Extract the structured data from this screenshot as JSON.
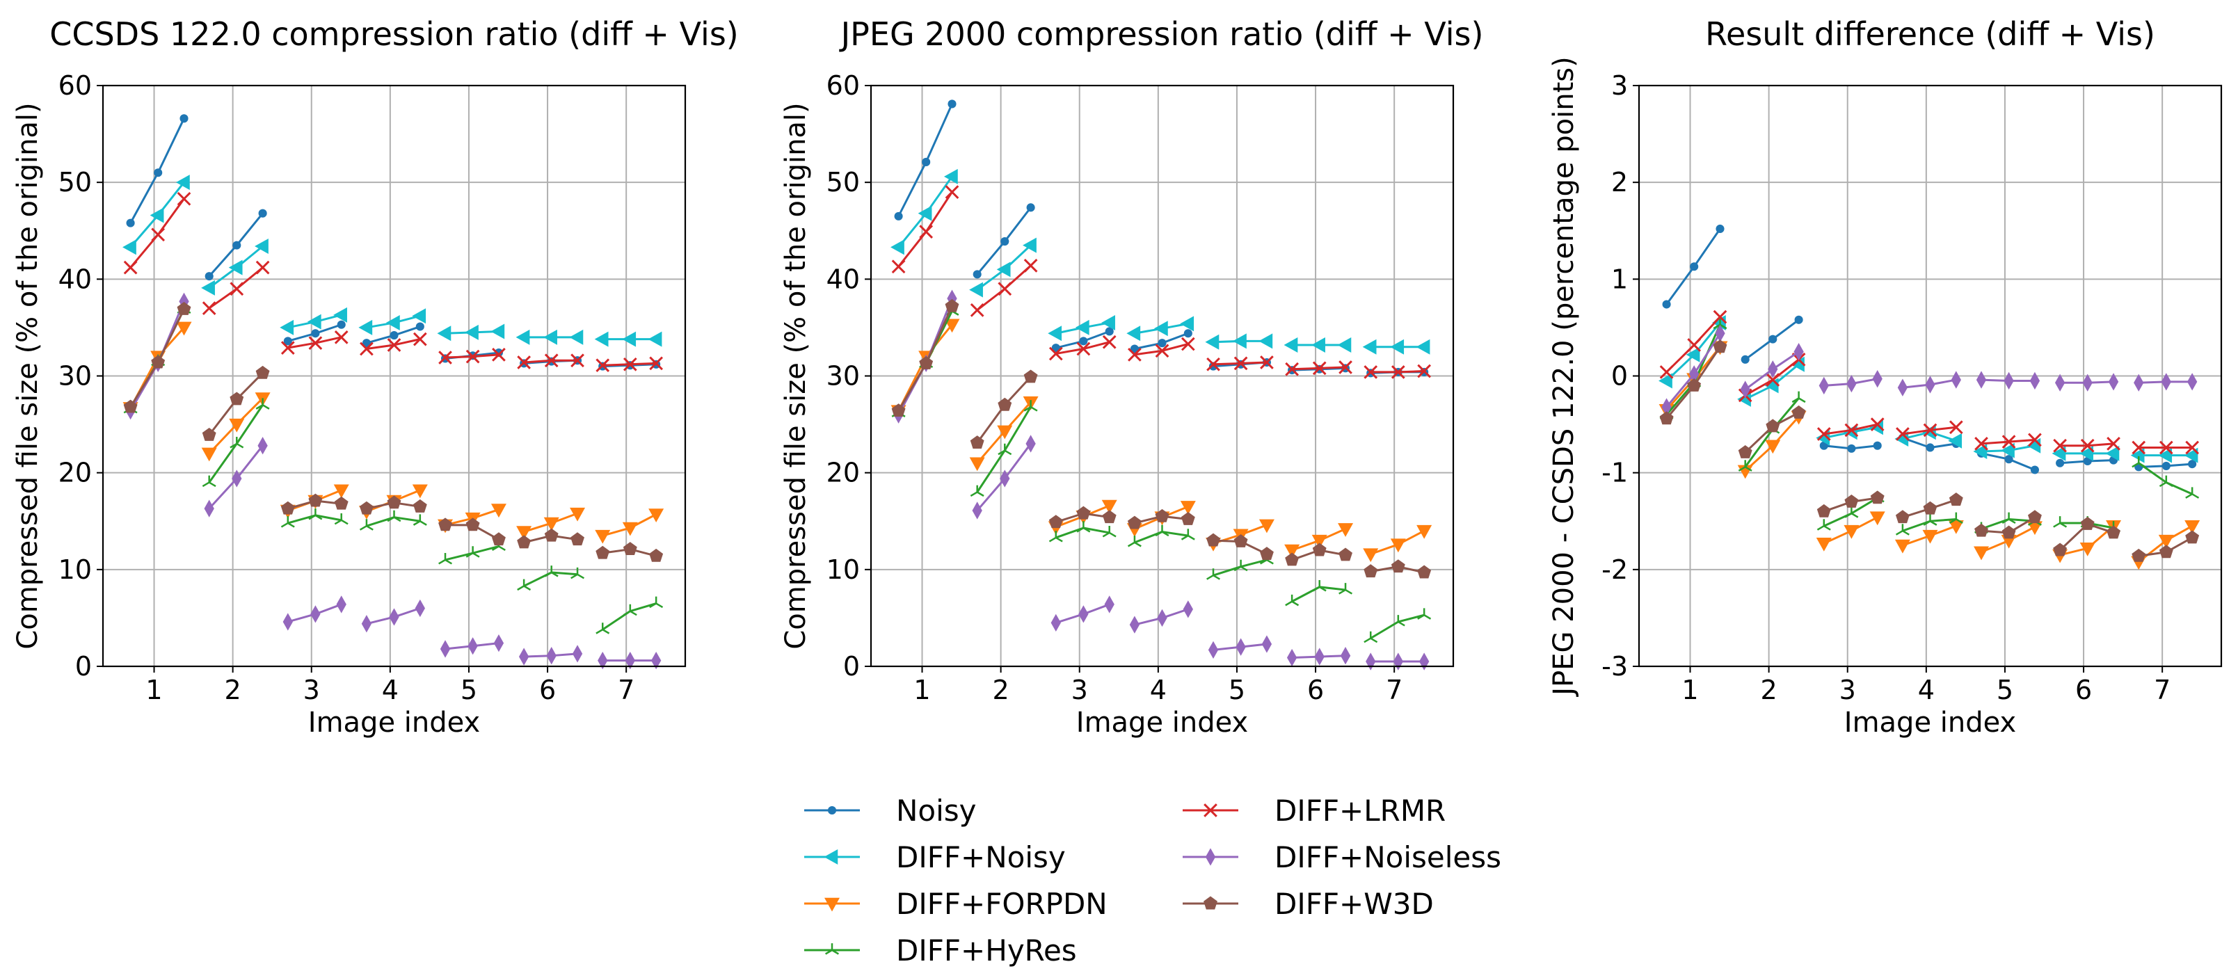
{
  "chart_data": [
    {
      "type": "line",
      "title": "CCSDS 122.0 compression ratio (diff + Vis)",
      "xlabel": "Image index",
      "ylabel": "Compressed file size (% of the original)",
      "xlim": [
        0.35,
        7.75
      ],
      "ylim": [
        0,
        60
      ],
      "xticks": [
        1,
        2,
        3,
        4,
        5,
        6,
        7
      ],
      "yticks": [
        0,
        10,
        20,
        30,
        40,
        50,
        60
      ],
      "grid": true,
      "series": [
        {
          "name": "Noisy",
          "groups": [
            [
              45.8,
              51.0,
              56.6
            ],
            [
              40.3,
              43.5,
              46.8
            ],
            [
              33.6,
              34.4,
              35.3
            ],
            [
              33.4,
              34.2,
              35.1
            ],
            [
              31.8,
              32.1,
              32.4
            ],
            [
              31.3,
              31.5,
              31.6
            ],
            [
              31.0,
              31.1,
              31.2
            ]
          ]
        },
        {
          "name": "DIFF+Noisy",
          "groups": [
            [
              43.3,
              46.6,
              50.0
            ],
            [
              39.1,
              41.2,
              43.4
            ],
            [
              35.0,
              35.6,
              36.3
            ],
            [
              35.0,
              35.5,
              36.2
            ],
            [
              34.4,
              34.5,
              34.6
            ],
            [
              34.0,
              34.0,
              34.0
            ],
            [
              33.8,
              33.8,
              33.8
            ]
          ]
        },
        {
          "name": "DIFF+FORPDN",
          "groups": [
            [
              26.7,
              32.0,
              35.0
            ],
            [
              22.0,
              25.0,
              27.7
            ],
            [
              16.1,
              17.1,
              18.2
            ],
            [
              16.0,
              17.1,
              18.2
            ],
            [
              14.6,
              15.3,
              16.2
            ],
            [
              13.9,
              14.8,
              15.8
            ],
            [
              13.5,
              14.3,
              15.7
            ]
          ]
        },
        {
          "name": "DIFF+HyRes",
          "groups": [
            [
              26.6,
              31.5,
              36.9
            ],
            [
              19.0,
              23.0,
              27.0
            ],
            [
              14.8,
              15.6,
              15.1
            ],
            [
              14.5,
              15.4,
              15.0
            ],
            [
              11.0,
              11.7,
              12.4
            ],
            [
              8.3,
              9.7,
              9.5
            ],
            [
              3.8,
              5.7,
              6.5
            ]
          ]
        },
        {
          "name": "DIFF+LRMR",
          "groups": [
            [
              41.2,
              44.6,
              48.3
            ],
            [
              37.0,
              39.0,
              41.2
            ],
            [
              32.9,
              33.4,
              34.0
            ],
            [
              32.8,
              33.2,
              33.8
            ],
            [
              31.9,
              32.0,
              32.2
            ],
            [
              31.4,
              31.6,
              31.6
            ],
            [
              31.1,
              31.2,
              31.3
            ]
          ]
        },
        {
          "name": "DIFF+Noiseless",
          "groups": [
            [
              26.4,
              31.3,
              37.7
            ],
            [
              16.3,
              19.4,
              22.8
            ],
            [
              4.6,
              5.4,
              6.4
            ],
            [
              4.4,
              5.1,
              6.0
            ],
            [
              1.8,
              2.1,
              2.4
            ],
            [
              1.0,
              1.1,
              1.3
            ],
            [
              0.6,
              0.6,
              0.6
            ]
          ]
        },
        {
          "name": "DIFF+W3D",
          "groups": [
            [
              26.8,
              31.4,
              36.9
            ],
            [
              23.9,
              27.6,
              30.3
            ],
            [
              16.3,
              17.1,
              16.8
            ],
            [
              16.3,
              16.9,
              16.5
            ],
            [
              14.6,
              14.6,
              13.1
            ],
            [
              12.8,
              13.5,
              13.1
            ],
            [
              11.7,
              12.1,
              11.4
            ]
          ]
        }
      ]
    },
    {
      "type": "line",
      "title": "JPEG 2000 compression ratio (diff + Vis)",
      "xlabel": "Image index",
      "ylabel": "Compressed file size (% of the original)",
      "xlim": [
        0.35,
        7.75
      ],
      "ylim": [
        0,
        60
      ],
      "xticks": [
        1,
        2,
        3,
        4,
        5,
        6,
        7
      ],
      "yticks": [
        0,
        10,
        20,
        30,
        40,
        50,
        60
      ],
      "grid": true,
      "series": [
        {
          "name": "Noisy",
          "groups": [
            [
              46.5,
              52.1,
              58.1
            ],
            [
              40.5,
              43.9,
              47.4
            ],
            [
              32.9,
              33.6,
              34.6
            ],
            [
              32.8,
              33.4,
              34.4
            ],
            [
              31.0,
              31.2,
              31.4
            ],
            [
              30.6,
              30.7,
              30.8
            ],
            [
              30.3,
              30.4,
              30.4
            ]
          ]
        },
        {
          "name": "DIFF+Noisy",
          "groups": [
            [
              43.3,
              46.8,
              50.6
            ],
            [
              38.9,
              41.0,
              43.5
            ],
            [
              34.4,
              35.0,
              35.5
            ],
            [
              34.4,
              34.9,
              35.4
            ],
            [
              33.5,
              33.6,
              33.6
            ],
            [
              33.2,
              33.2,
              33.2
            ],
            [
              33.0,
              33.0,
              33.0
            ]
          ]
        },
        {
          "name": "DIFF+FORPDN",
          "groups": [
            [
              26.4,
              32.0,
              35.3
            ],
            [
              21.0,
              24.3,
              27.3
            ],
            [
              14.4,
              15.5,
              16.6
            ],
            [
              14.2,
              15.4,
              16.5
            ],
            [
              12.7,
              13.6,
              14.6
            ],
            [
              12.0,
              13.0,
              14.2
            ],
            [
              11.6,
              12.6,
              14.0
            ]
          ]
        },
        {
          "name": "DIFF+HyRes",
          "groups": [
            [
              26.2,
              31.3,
              36.7
            ],
            [
              18.0,
              22.3,
              26.8
            ],
            [
              13.3,
              14.3,
              13.8
            ],
            [
              12.8,
              13.9,
              13.5
            ],
            [
              9.4,
              10.3,
              11.0
            ],
            [
              6.7,
              8.2,
              7.9
            ],
            [
              2.9,
              4.6,
              5.3
            ]
          ]
        },
        {
          "name": "DIFF+LRMR",
          "groups": [
            [
              41.3,
              44.9,
              49.0
            ],
            [
              36.8,
              39.0,
              41.4
            ],
            [
              32.3,
              32.8,
              33.5
            ],
            [
              32.2,
              32.6,
              33.3
            ],
            [
              31.2,
              31.3,
              31.4
            ],
            [
              30.7,
              30.8,
              30.9
            ],
            [
              30.4,
              30.4,
              30.5
            ]
          ]
        },
        {
          "name": "DIFF+Noiseless",
          "groups": [
            [
              26.0,
              31.3,
              38.0
            ],
            [
              16.1,
              19.4,
              23.0
            ],
            [
              4.5,
              5.4,
              6.4
            ],
            [
              4.3,
              5.0,
              5.9
            ],
            [
              1.7,
              2.0,
              2.3
            ],
            [
              0.9,
              1.0,
              1.1
            ],
            [
              0.5,
              0.5,
              0.5
            ]
          ]
        },
        {
          "name": "DIFF+W3D",
          "groups": [
            [
              26.4,
              31.3,
              37.2
            ],
            [
              23.1,
              27.0,
              29.9
            ],
            [
              14.9,
              15.8,
              15.4
            ],
            [
              14.8,
              15.5,
              15.2
            ],
            [
              13.0,
              12.9,
              11.6
            ],
            [
              11.0,
              12.0,
              11.5
            ],
            [
              9.8,
              10.3,
              9.7
            ]
          ]
        }
      ]
    },
    {
      "type": "line",
      "title": "Result difference (diff + Vis)",
      "xlabel": "Image index",
      "ylabel": "JPEG 2000 - CCSDS 122.0 (percentage points)",
      "xlim": [
        0.35,
        7.75
      ],
      "ylim": [
        -3,
        3
      ],
      "xticks": [
        1,
        2,
        3,
        4,
        5,
        6,
        7
      ],
      "yticks": [
        -3,
        -2,
        -1,
        0,
        1,
        2,
        3
      ],
      "grid": true,
      "series": [
        {
          "name": "Noisy",
          "groups": [
            [
              0.74,
              1.13,
              1.52
            ],
            [
              0.17,
              0.38,
              0.58
            ],
            [
              -0.72,
              -0.75,
              -0.72
            ],
            [
              -0.64,
              -0.74,
              -0.7
            ],
            [
              -0.8,
              -0.86,
              -0.97
            ],
            [
              -0.9,
              -0.88,
              -0.87
            ],
            [
              -0.94,
              -0.93,
              -0.91
            ]
          ]
        },
        {
          "name": "DIFF+Noisy",
          "groups": [
            [
              -0.05,
              0.22,
              0.55
            ],
            [
              -0.24,
              -0.1,
              0.12
            ],
            [
              -0.64,
              -0.58,
              -0.53
            ],
            [
              -0.65,
              -0.58,
              -0.67
            ],
            [
              -0.78,
              -0.77,
              -0.72
            ],
            [
              -0.8,
              -0.8,
              -0.8
            ],
            [
              -0.82,
              -0.82,
              -0.82
            ]
          ]
        },
        {
          "name": "DIFF+FORPDN",
          "groups": [
            [
              -0.35,
              -0.03,
              0.3
            ],
            [
              -0.98,
              -0.72,
              -0.42
            ],
            [
              -1.73,
              -1.6,
              -1.46
            ],
            [
              -1.75,
              -1.65,
              -1.55
            ],
            [
              -1.82,
              -1.7,
              -1.56
            ],
            [
              -1.85,
              -1.78,
              -1.55
            ],
            [
              -1.92,
              -1.7,
              -1.55
            ]
          ]
        },
        {
          "name": "DIFF+HyRes",
          "groups": [
            [
              -0.4,
              -0.07,
              0.53
            ],
            [
              -0.94,
              -0.55,
              -0.23
            ],
            [
              -1.55,
              -1.42,
              -1.26
            ],
            [
              -1.6,
              -1.5,
              -1.48
            ],
            [
              -1.58,
              -1.48,
              -1.5
            ],
            [
              -1.52,
              -1.52,
              -1.57
            ],
            [
              -0.9,
              -1.1,
              -1.22
            ]
          ]
        },
        {
          "name": "DIFF+LRMR",
          "groups": [
            [
              0.04,
              0.32,
              0.61
            ],
            [
              -0.2,
              -0.04,
              0.17
            ],
            [
              -0.6,
              -0.56,
              -0.5
            ],
            [
              -0.6,
              -0.56,
              -0.53
            ],
            [
              -0.7,
              -0.68,
              -0.66
            ],
            [
              -0.72,
              -0.72,
              -0.7
            ],
            [
              -0.74,
              -0.74,
              -0.74
            ]
          ]
        },
        {
          "name": "DIFF+Noiseless",
          "groups": [
            [
              -0.32,
              0.02,
              0.44
            ],
            [
              -0.14,
              0.07,
              0.25
            ],
            [
              -0.1,
              -0.08,
              -0.03
            ],
            [
              -0.12,
              -0.09,
              -0.04
            ],
            [
              -0.04,
              -0.05,
              -0.05
            ],
            [
              -0.07,
              -0.07,
              -0.06
            ],
            [
              -0.07,
              -0.06,
              -0.06
            ]
          ]
        },
        {
          "name": "DIFF+W3D",
          "groups": [
            [
              -0.44,
              -0.1,
              0.3
            ],
            [
              -0.79,
              -0.52,
              -0.38
            ],
            [
              -1.4,
              -1.3,
              -1.26
            ],
            [
              -1.46,
              -1.37,
              -1.28
            ],
            [
              -1.6,
              -1.62,
              -1.46
            ],
            [
              -1.8,
              -1.53,
              -1.62
            ],
            [
              -1.86,
              -1.82,
              -1.67
            ]
          ]
        }
      ]
    }
  ],
  "legend": {
    "placement": "bottom-center",
    "entries": [
      "Noisy",
      "DIFF+Noisy",
      "DIFF+FORPDN",
      "DIFF+HyRes",
      "DIFF+LRMR",
      "DIFF+Noiseless",
      "DIFF+W3D"
    ]
  },
  "styles": {
    "Noisy": {
      "color": "#1f77b4",
      "marker": "dot-marker"
    },
    "DIFF+Noisy": {
      "color": "#17becf",
      "marker": "left-triangle-marker"
    },
    "DIFF+FORPDN": {
      "color": "#ff7f0e",
      "marker": "down-triangle-marker"
    },
    "DIFF+HyRes": {
      "color": "#2ca02c",
      "marker": "tri-marker"
    },
    "DIFF+LRMR": {
      "color": "#d62728",
      "marker": "x-marker"
    },
    "DIFF+Noiseless": {
      "color": "#9467bd",
      "marker": "thin-diamond-marker"
    },
    "DIFF+W3D": {
      "color": "#8c564b",
      "marker": "pentagon-marker"
    }
  }
}
